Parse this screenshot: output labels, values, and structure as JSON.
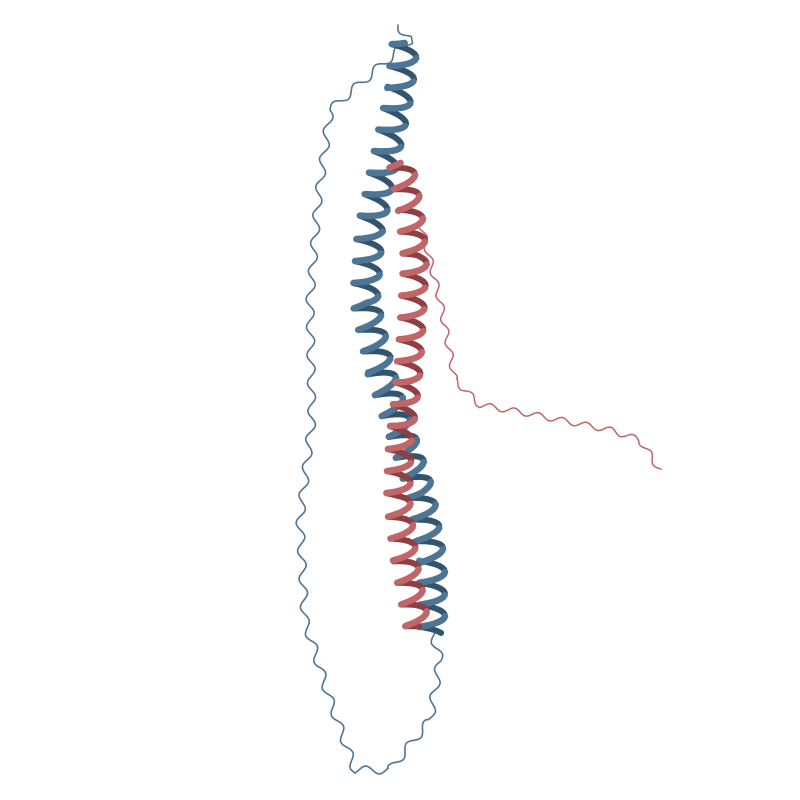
{
  "scene": {
    "background": "#ffffff",
    "chains": [
      {
        "name": "chain-a",
        "color": "#4e7594",
        "shade": "#33546e"
      },
      {
        "name": "chain-b",
        "color": "#c06568",
        "shade": "#8f3f43"
      }
    ]
  }
}
